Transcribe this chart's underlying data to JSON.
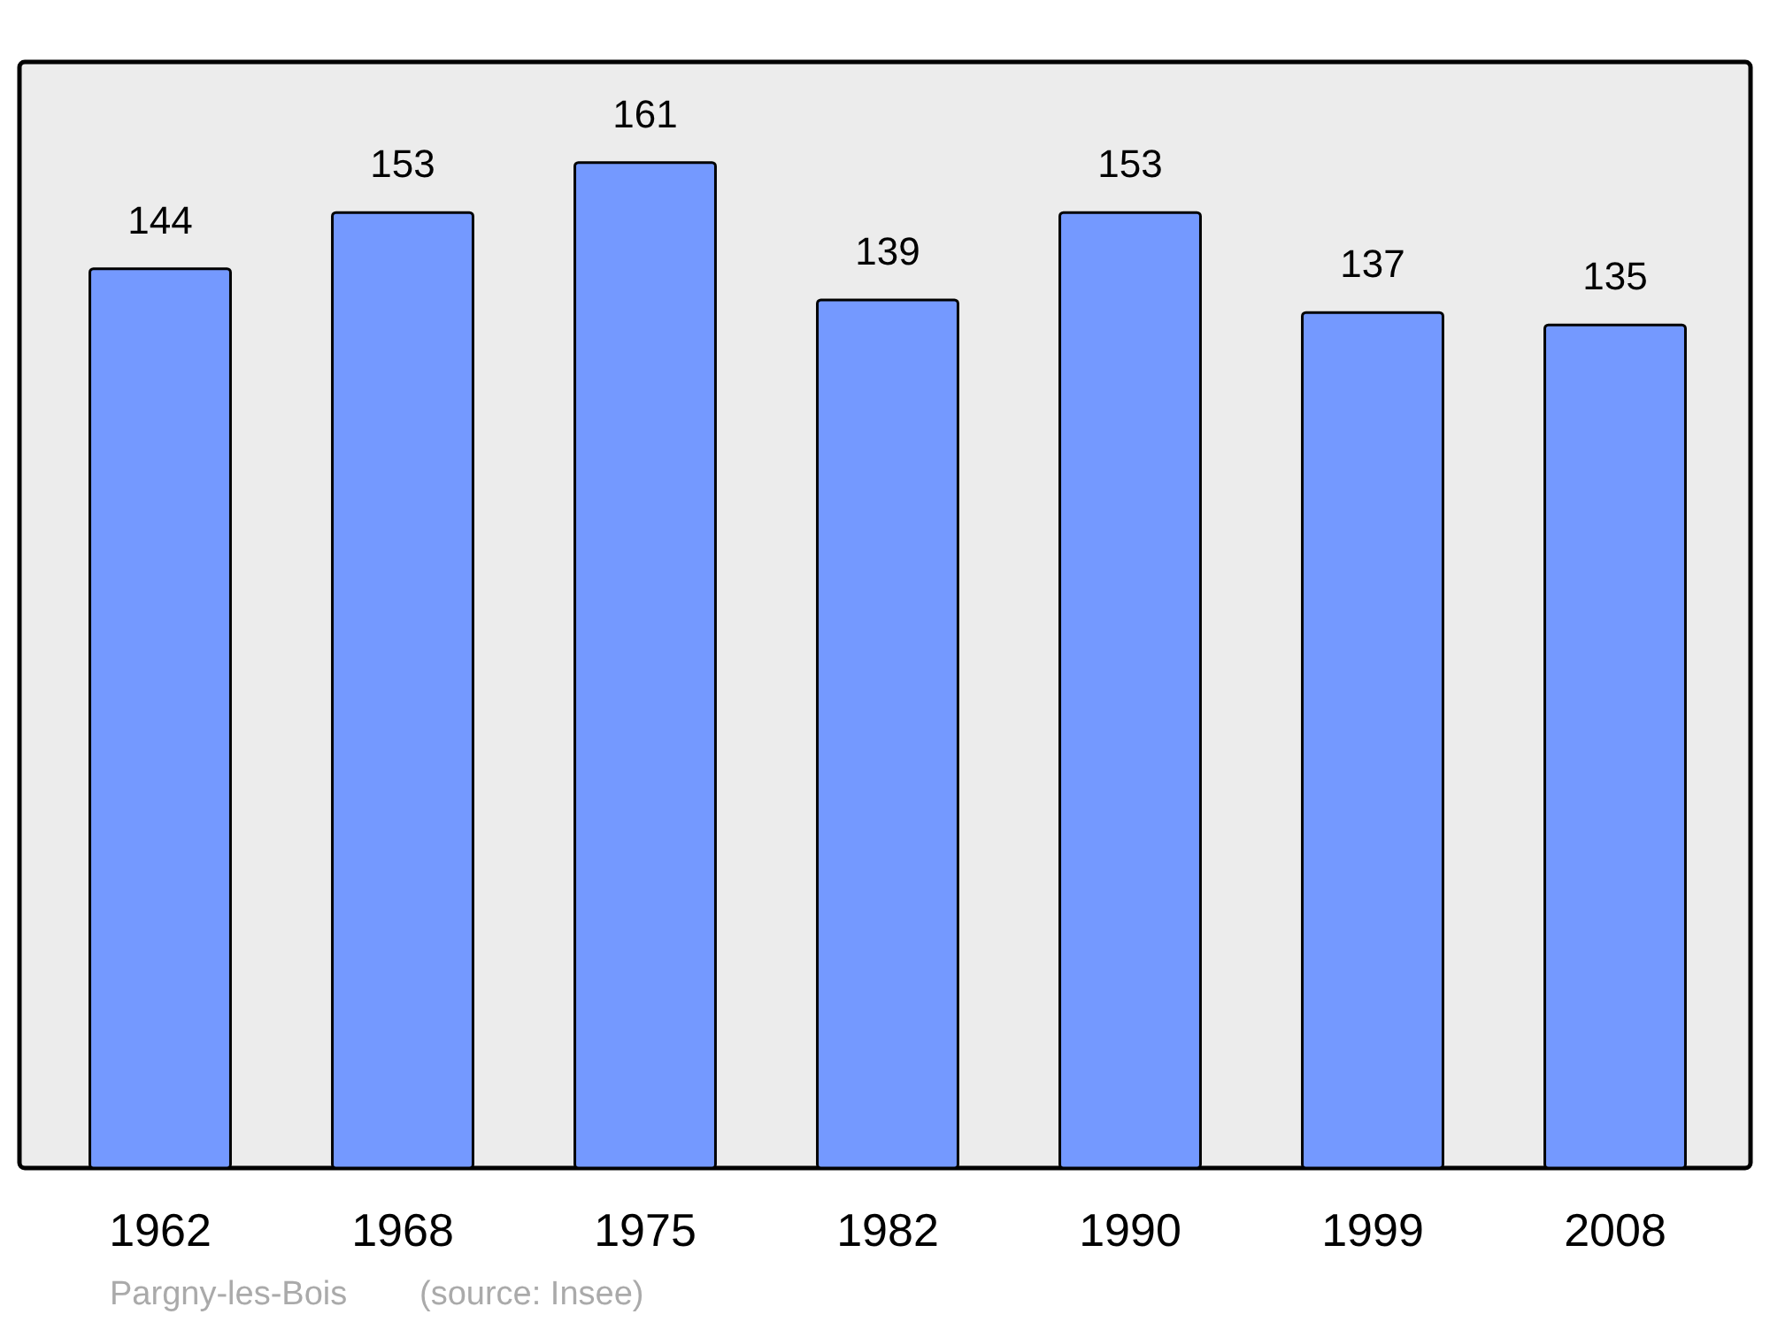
{
  "chart_data": {
    "type": "bar",
    "categories": [
      "1962",
      "1968",
      "1975",
      "1982",
      "1990",
      "1999",
      "2008"
    ],
    "values": [
      144,
      153,
      161,
      139,
      153,
      137,
      135
    ],
    "color": "#7499ff",
    "data_labels": true,
    "grid": false,
    "annotations": [
      "Pargny-les-Bois",
      "(source: Insee)"
    ]
  }
}
